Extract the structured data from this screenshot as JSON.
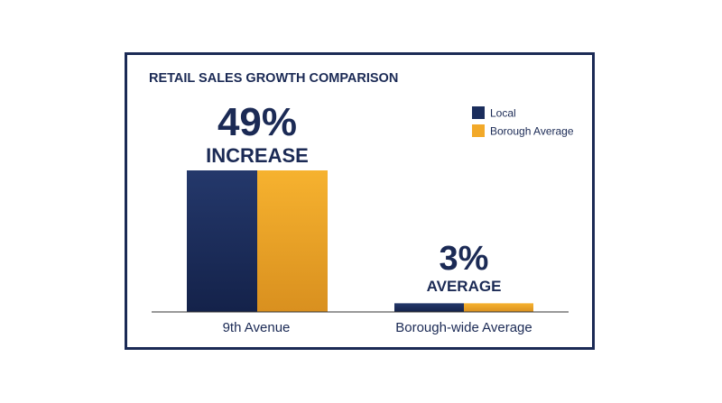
{
  "chart_data": {
    "type": "bar",
    "title": "RETAIL SALES GROWTH COMPARISON",
    "categories": [
      "9th Avenue",
      "Borough-wide Average"
    ],
    "series": [
      {
        "name": "Local",
        "values": [
          49,
          3
        ],
        "color": "#1b2d5c"
      },
      {
        "name": "Borough Average",
        "values": [
          49,
          3
        ],
        "color": "#f2a929"
      }
    ],
    "annotations": [
      {
        "category": "9th Avenue",
        "value_text": "49%",
        "label": "INCREASE"
      },
      {
        "category": "Borough-wide Average",
        "value_text": "3%",
        "label": "AVERAGE"
      }
    ],
    "ylim": [
      0,
      49
    ],
    "grid": false,
    "legend_position": "top-right"
  }
}
